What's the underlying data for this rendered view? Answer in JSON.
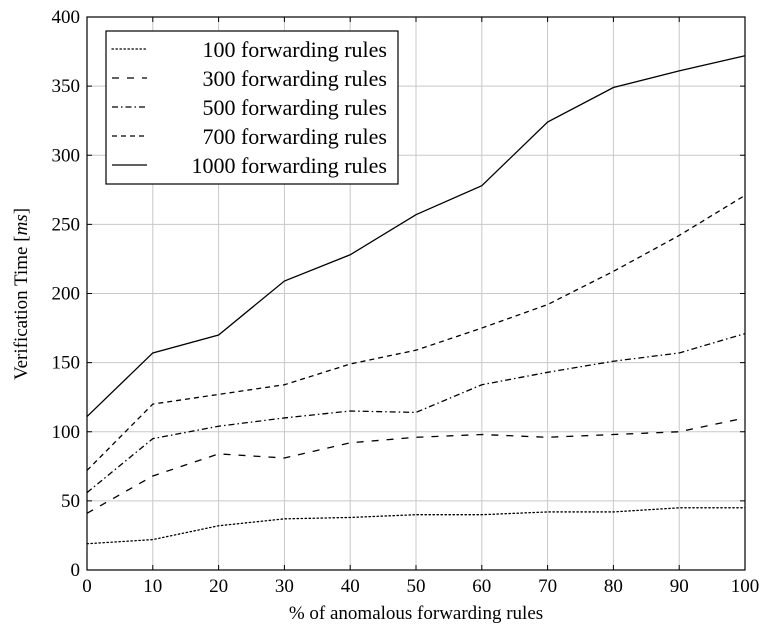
{
  "chart_data": {
    "type": "line",
    "xlabel": "% of anomalous forwarding rules",
    "ylabel_main": "Verification Time [",
    "ylabel_unit": "ms",
    "ylabel_end": "]",
    "xlim": [
      0,
      100
    ],
    "ylim": [
      0,
      400
    ],
    "x_ticks": [
      0,
      10,
      20,
      30,
      40,
      50,
      60,
      70,
      80,
      90,
      100
    ],
    "y_ticks": [
      0,
      50,
      100,
      150,
      200,
      250,
      300,
      350,
      400
    ],
    "grid": true,
    "legend_position": "top-left",
    "x": [
      0,
      10,
      20,
      30,
      40,
      50,
      60,
      70,
      80,
      90,
      100
    ],
    "series": [
      {
        "name": "100 forwarding rules",
        "style": "dotted",
        "values": [
          19,
          22,
          32,
          37,
          38,
          40,
          40,
          42,
          42,
          45,
          45
        ]
      },
      {
        "name": "300 forwarding rules",
        "style": "loosely-dashed",
        "values": [
          41,
          68,
          84,
          81,
          92,
          96,
          98,
          96,
          98,
          100,
          110
        ]
      },
      {
        "name": "500 forwarding rules",
        "style": "dash-dot",
        "values": [
          56,
          95,
          104,
          110,
          115,
          114,
          134,
          143,
          151,
          157,
          171
        ]
      },
      {
        "name": "700 forwarding rules",
        "style": "dashed",
        "values": [
          72,
          120,
          127,
          134,
          149,
          159,
          175,
          192,
          216,
          242,
          271
        ]
      },
      {
        "name": "1000 forwarding rules",
        "style": "solid",
        "values": [
          111,
          157,
          170,
          209,
          228,
          257,
          278,
          324,
          349,
          361,
          372
        ]
      }
    ]
  }
}
